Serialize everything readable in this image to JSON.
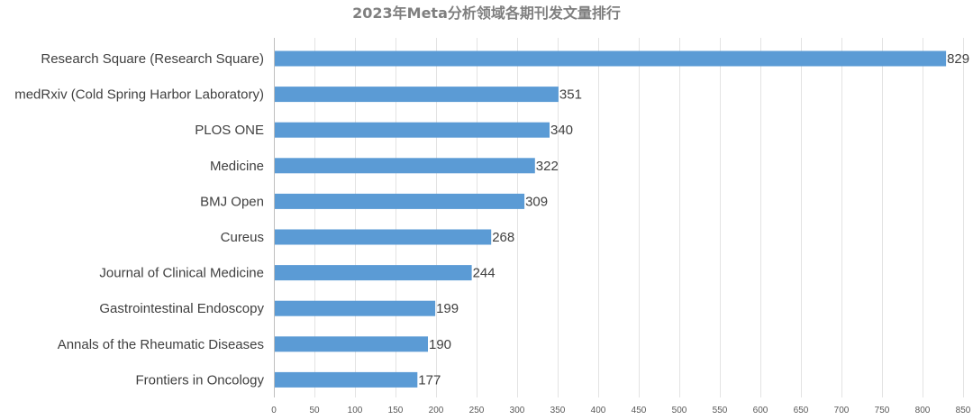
{
  "chart_data": {
    "type": "bar",
    "orientation": "horizontal",
    "title": "2023年Meta分析领域各期刊发文量排行",
    "xlabel": "",
    "ylabel": "",
    "categories": [
      "Research Square (Research Square)",
      "medRxiv (Cold Spring Harbor Laboratory)",
      "PLOS ONE",
      "Medicine",
      "BMJ Open",
      "Cureus",
      "Journal of Clinical Medicine",
      "Gastrointestinal Endoscopy",
      "Annals of the Rheumatic Diseases",
      "Frontiers in Oncology"
    ],
    "values": [
      829,
      351,
      340,
      322,
      309,
      268,
      244,
      199,
      190,
      177
    ],
    "xlim": [
      0,
      850
    ],
    "xticks": [
      0,
      50,
      100,
      150,
      200,
      250,
      300,
      350,
      400,
      450,
      500,
      550,
      600,
      650,
      700,
      750,
      800,
      850
    ],
    "grid": "vertical",
    "legend": "none",
    "bar_color": "#5b9bd5"
  }
}
